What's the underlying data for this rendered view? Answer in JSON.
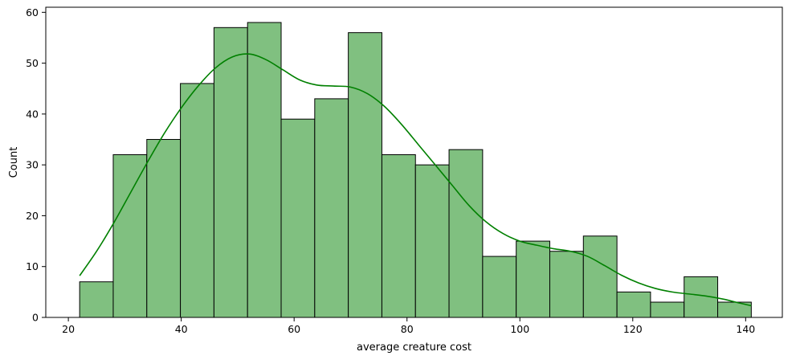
{
  "chart_data": {
    "type": "bar",
    "subtype": "histogram-with-kde",
    "title": "",
    "xlabel": "average creature cost",
    "ylabel": "Count",
    "xlim": [
      16.0,
      146.5
    ],
    "ylim": [
      0,
      61
    ],
    "xticks": [
      20,
      40,
      60,
      80,
      100,
      120,
      140
    ],
    "yticks": [
      0,
      10,
      20,
      30,
      40,
      50,
      60
    ],
    "grid": false,
    "legend": "none",
    "bar_color": "#80c080",
    "edge_color": "#000000",
    "kde_color": "#008000",
    "bin_edges": [
      22.0,
      27.95,
      33.9,
      39.85,
      45.8,
      51.75,
      57.7,
      63.65,
      69.6,
      75.55,
      81.5,
      87.45,
      93.4,
      99.35,
      105.3,
      111.25,
      117.2,
      123.15,
      129.1,
      135.05,
      141.0
    ],
    "counts": [
      7,
      32,
      35,
      46,
      57,
      58,
      39,
      43,
      56,
      32,
      30,
      33,
      12,
      15,
      13,
      16,
      5,
      3,
      8,
      3
    ],
    "kde": {
      "x": [
        22,
        25,
        28,
        31,
        34,
        37,
        40,
        43,
        46,
        49,
        52,
        55,
        58,
        61,
        64,
        67,
        70,
        73,
        76,
        79,
        82,
        85,
        88,
        91,
        94,
        97,
        100,
        103,
        106,
        109,
        112,
        115,
        118,
        121,
        124,
        127,
        130,
        133,
        136,
        139,
        141
      ],
      "y": [
        8.2,
        13.0,
        18.5,
        24.5,
        30.5,
        36.2,
        41.2,
        45.5,
        49.0,
        51.2,
        51.8,
        50.7,
        48.7,
        46.7,
        45.7,
        45.5,
        45.3,
        44.0,
        41.5,
        38.0,
        34.0,
        30.0,
        26.0,
        22.0,
        18.8,
        16.5,
        15.0,
        14.2,
        13.5,
        13.0,
        12.0,
        10.2,
        8.3,
        6.8,
        5.7,
        5.0,
        4.6,
        4.2,
        3.6,
        2.8,
        2.3
      ]
    }
  }
}
